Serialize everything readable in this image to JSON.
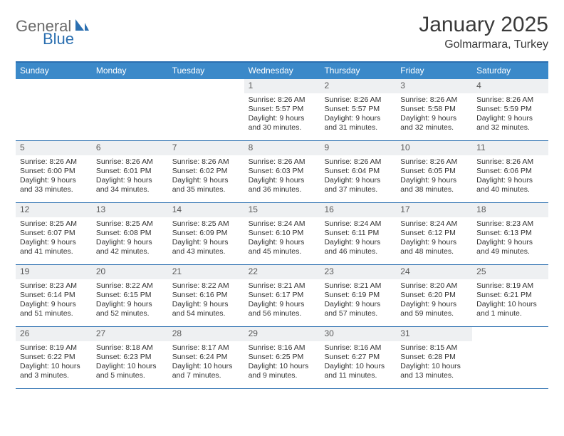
{
  "brand": {
    "text_general": "General",
    "text_blue": "Blue"
  },
  "title": {
    "month": "January 2025",
    "location": "Golmarmara, Turkey"
  },
  "colors": {
    "header_bar": "#3b89c9",
    "border": "#2b6fb0",
    "daynum_bg": "#eef0f2",
    "text": "#333333"
  },
  "days_of_week": [
    "Sunday",
    "Monday",
    "Tuesday",
    "Wednesday",
    "Thursday",
    "Friday",
    "Saturday"
  ],
  "weeks": [
    [
      {
        "n": "",
        "lines": []
      },
      {
        "n": "",
        "lines": []
      },
      {
        "n": "",
        "lines": []
      },
      {
        "n": "1",
        "lines": [
          "Sunrise: 8:26 AM",
          "Sunset: 5:57 PM",
          "Daylight: 9 hours",
          "and 30 minutes."
        ]
      },
      {
        "n": "2",
        "lines": [
          "Sunrise: 8:26 AM",
          "Sunset: 5:57 PM",
          "Daylight: 9 hours",
          "and 31 minutes."
        ]
      },
      {
        "n": "3",
        "lines": [
          "Sunrise: 8:26 AM",
          "Sunset: 5:58 PM",
          "Daylight: 9 hours",
          "and 32 minutes."
        ]
      },
      {
        "n": "4",
        "lines": [
          "Sunrise: 8:26 AM",
          "Sunset: 5:59 PM",
          "Daylight: 9 hours",
          "and 32 minutes."
        ]
      }
    ],
    [
      {
        "n": "5",
        "lines": [
          "Sunrise: 8:26 AM",
          "Sunset: 6:00 PM",
          "Daylight: 9 hours",
          "and 33 minutes."
        ]
      },
      {
        "n": "6",
        "lines": [
          "Sunrise: 8:26 AM",
          "Sunset: 6:01 PM",
          "Daylight: 9 hours",
          "and 34 minutes."
        ]
      },
      {
        "n": "7",
        "lines": [
          "Sunrise: 8:26 AM",
          "Sunset: 6:02 PM",
          "Daylight: 9 hours",
          "and 35 minutes."
        ]
      },
      {
        "n": "8",
        "lines": [
          "Sunrise: 8:26 AM",
          "Sunset: 6:03 PM",
          "Daylight: 9 hours",
          "and 36 minutes."
        ]
      },
      {
        "n": "9",
        "lines": [
          "Sunrise: 8:26 AM",
          "Sunset: 6:04 PM",
          "Daylight: 9 hours",
          "and 37 minutes."
        ]
      },
      {
        "n": "10",
        "lines": [
          "Sunrise: 8:26 AM",
          "Sunset: 6:05 PM",
          "Daylight: 9 hours",
          "and 38 minutes."
        ]
      },
      {
        "n": "11",
        "lines": [
          "Sunrise: 8:26 AM",
          "Sunset: 6:06 PM",
          "Daylight: 9 hours",
          "and 40 minutes."
        ]
      }
    ],
    [
      {
        "n": "12",
        "lines": [
          "Sunrise: 8:25 AM",
          "Sunset: 6:07 PM",
          "Daylight: 9 hours",
          "and 41 minutes."
        ]
      },
      {
        "n": "13",
        "lines": [
          "Sunrise: 8:25 AM",
          "Sunset: 6:08 PM",
          "Daylight: 9 hours",
          "and 42 minutes."
        ]
      },
      {
        "n": "14",
        "lines": [
          "Sunrise: 8:25 AM",
          "Sunset: 6:09 PM",
          "Daylight: 9 hours",
          "and 43 minutes."
        ]
      },
      {
        "n": "15",
        "lines": [
          "Sunrise: 8:24 AM",
          "Sunset: 6:10 PM",
          "Daylight: 9 hours",
          "and 45 minutes."
        ]
      },
      {
        "n": "16",
        "lines": [
          "Sunrise: 8:24 AM",
          "Sunset: 6:11 PM",
          "Daylight: 9 hours",
          "and 46 minutes."
        ]
      },
      {
        "n": "17",
        "lines": [
          "Sunrise: 8:24 AM",
          "Sunset: 6:12 PM",
          "Daylight: 9 hours",
          "and 48 minutes."
        ]
      },
      {
        "n": "18",
        "lines": [
          "Sunrise: 8:23 AM",
          "Sunset: 6:13 PM",
          "Daylight: 9 hours",
          "and 49 minutes."
        ]
      }
    ],
    [
      {
        "n": "19",
        "lines": [
          "Sunrise: 8:23 AM",
          "Sunset: 6:14 PM",
          "Daylight: 9 hours",
          "and 51 minutes."
        ]
      },
      {
        "n": "20",
        "lines": [
          "Sunrise: 8:22 AM",
          "Sunset: 6:15 PM",
          "Daylight: 9 hours",
          "and 52 minutes."
        ]
      },
      {
        "n": "21",
        "lines": [
          "Sunrise: 8:22 AM",
          "Sunset: 6:16 PM",
          "Daylight: 9 hours",
          "and 54 minutes."
        ]
      },
      {
        "n": "22",
        "lines": [
          "Sunrise: 8:21 AM",
          "Sunset: 6:17 PM",
          "Daylight: 9 hours",
          "and 56 minutes."
        ]
      },
      {
        "n": "23",
        "lines": [
          "Sunrise: 8:21 AM",
          "Sunset: 6:19 PM",
          "Daylight: 9 hours",
          "and 57 minutes."
        ]
      },
      {
        "n": "24",
        "lines": [
          "Sunrise: 8:20 AM",
          "Sunset: 6:20 PM",
          "Daylight: 9 hours",
          "and 59 minutes."
        ]
      },
      {
        "n": "25",
        "lines": [
          "Sunrise: 8:19 AM",
          "Sunset: 6:21 PM",
          "Daylight: 10 hours",
          "and 1 minute."
        ]
      }
    ],
    [
      {
        "n": "26",
        "lines": [
          "Sunrise: 8:19 AM",
          "Sunset: 6:22 PM",
          "Daylight: 10 hours",
          "and 3 minutes."
        ]
      },
      {
        "n": "27",
        "lines": [
          "Sunrise: 8:18 AM",
          "Sunset: 6:23 PM",
          "Daylight: 10 hours",
          "and 5 minutes."
        ]
      },
      {
        "n": "28",
        "lines": [
          "Sunrise: 8:17 AM",
          "Sunset: 6:24 PM",
          "Daylight: 10 hours",
          "and 7 minutes."
        ]
      },
      {
        "n": "29",
        "lines": [
          "Sunrise: 8:16 AM",
          "Sunset: 6:25 PM",
          "Daylight: 10 hours",
          "and 9 minutes."
        ]
      },
      {
        "n": "30",
        "lines": [
          "Sunrise: 8:16 AM",
          "Sunset: 6:27 PM",
          "Daylight: 10 hours",
          "and 11 minutes."
        ]
      },
      {
        "n": "31",
        "lines": [
          "Sunrise: 8:15 AM",
          "Sunset: 6:28 PM",
          "Daylight: 10 hours",
          "and 13 minutes."
        ]
      },
      {
        "n": "",
        "lines": []
      }
    ]
  ]
}
